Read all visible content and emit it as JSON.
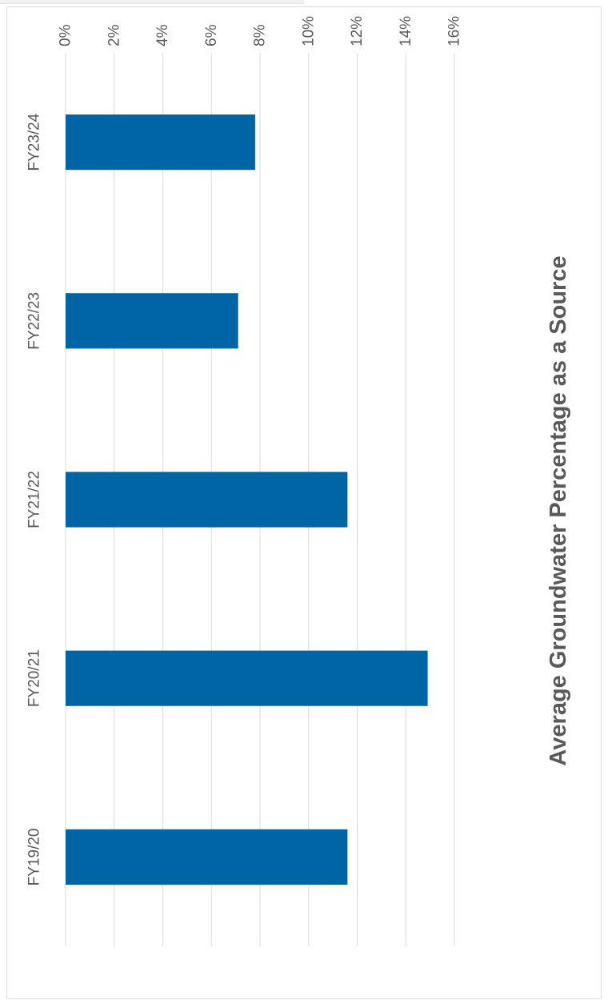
{
  "chart_data": {
    "type": "bar",
    "orientation": "vertical",
    "title": "Average Groundwater Percentage as a Source",
    "categories": [
      "FY19/20",
      "FY20/21",
      "FY21/22",
      "FY22/23",
      "FY23/24"
    ],
    "values": [
      11.6,
      14.9,
      11.6,
      7.1,
      7.8
    ],
    "unit": "%",
    "ylim": [
      0,
      16
    ],
    "yticks": [
      "0%",
      "2%",
      "4%",
      "6%",
      "8%",
      "10%",
      "12%",
      "14%",
      "16%"
    ],
    "grid": true,
    "legend": "none",
    "bar_color": "#0065a4",
    "grid_color": "#d9d9d9",
    "text_color": "#595959"
  }
}
